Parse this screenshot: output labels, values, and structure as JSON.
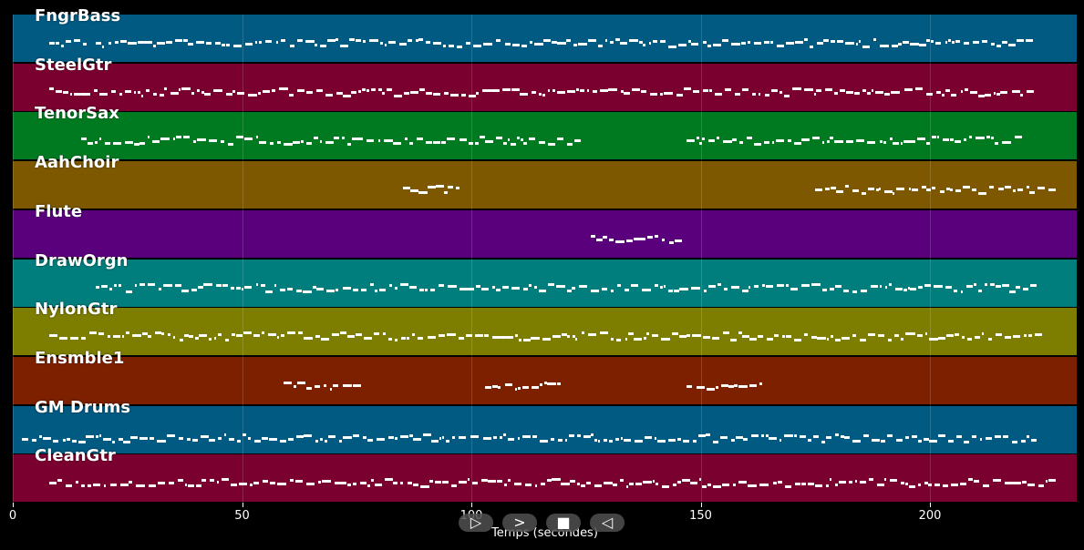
{
  "xaxis": {
    "label": "Temps (secondes)",
    "min": 0,
    "max": 232,
    "ticks": [
      0,
      50,
      100,
      150,
      200
    ]
  },
  "controls": [
    {
      "name": "play-button",
      "icon": "play-icon",
      "glyph": "▷"
    },
    {
      "name": "next-button",
      "icon": "chevron-right-icon",
      "glyph": ">"
    },
    {
      "name": "stop-button",
      "icon": "stop-icon",
      "glyph": "■"
    },
    {
      "name": "rewind-button",
      "icon": "reverse-icon",
      "glyph": "◁"
    }
  ],
  "tracks": [
    {
      "name": "FngrBass",
      "color": "#005a82",
      "active": [
        [
          8,
          16
        ],
        [
          18,
          222
        ]
      ]
    },
    {
      "name": "SteelGtr",
      "color": "#7a0030",
      "active": [
        [
          8,
          223
        ]
      ]
    },
    {
      "name": "TenorSax",
      "color": "#007a20",
      "active": [
        [
          15,
          123
        ],
        [
          147,
          219
        ]
      ]
    },
    {
      "name": "AahChoir",
      "color": "#7d5800",
      "active": [
        [
          85,
          98
        ],
        [
          175,
          226
        ]
      ]
    },
    {
      "name": "Flute",
      "color": "#5a007d",
      "active": [
        [
          126,
          146
        ]
      ]
    },
    {
      "name": "DrawOrgn",
      "color": "#007d7d",
      "active": [
        [
          18,
          222
        ]
      ]
    },
    {
      "name": "NylonGtr",
      "color": "#7d7d00",
      "active": [
        [
          8,
          224
        ]
      ]
    },
    {
      "name": "Ensmble1",
      "color": "#7d2000",
      "active": [
        [
          59,
          75
        ],
        [
          103,
          119
        ],
        [
          147,
          163
        ]
      ]
    },
    {
      "name": "GM Drums",
      "color": "#005a82",
      "active": [
        [
          2,
          222
        ]
      ]
    },
    {
      "name": "CleanGtr",
      "color": "#7a0030",
      "active": [
        [
          8,
          226
        ]
      ]
    }
  ]
}
